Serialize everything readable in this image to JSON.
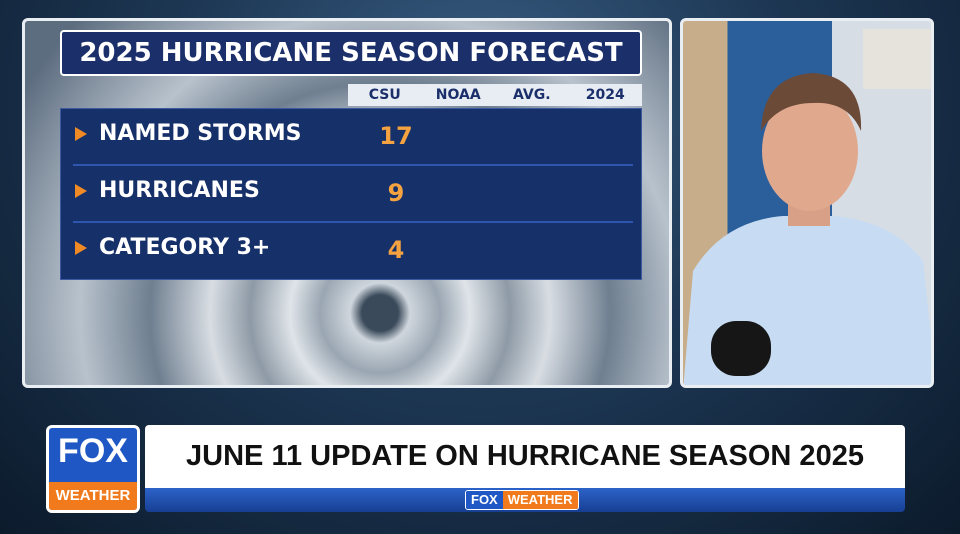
{
  "forecast": {
    "title": "2025 HURRICANE SEASON FORECAST",
    "columns": [
      "CSU",
      "NOAA",
      "AVG.",
      "2024"
    ],
    "rows": [
      {
        "label": "NAMED STORMS",
        "csu": 17
      },
      {
        "label": "HURRICANES",
        "csu": 9
      },
      {
        "label": "CATEGORY 3+",
        "csu": 4
      }
    ]
  },
  "lower_third": {
    "headline": "JUNE 11 UPDATE ON HURRICANE SEASON 2025",
    "logo": {
      "top": "FOX",
      "bottom": "WEATHER"
    }
  }
}
